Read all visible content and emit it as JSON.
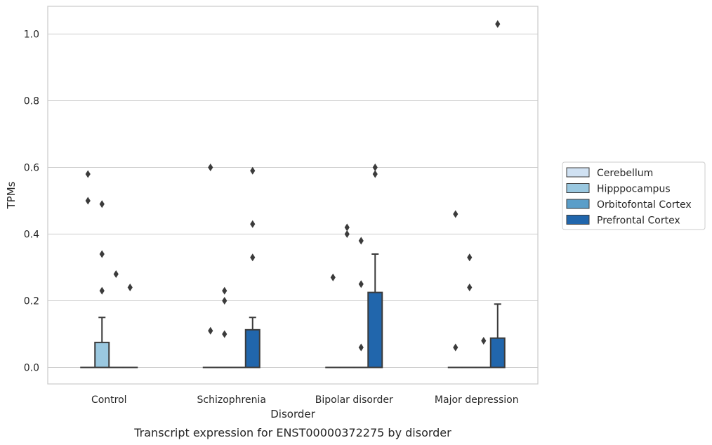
{
  "chart_data": {
    "type": "box",
    "caption": "Transcript expression for ENST00000372275 by disorder",
    "xlabel": "Disorder",
    "ylabel": "TPMs",
    "ylim": [
      -0.05,
      1.08
    ],
    "yticks": [
      "0.0",
      "0.2",
      "0.4",
      "0.6",
      "0.8",
      "1.0"
    ],
    "grid": "horizontal",
    "legend_position": "right",
    "categories": [
      "Control",
      "Schizophrenia",
      "Bipolar disorder",
      "Major depression"
    ],
    "series": [
      {
        "name": "Cerebellum",
        "color": "#d0e1f2",
        "boxes": [
          {
            "q1": 0,
            "median": 0,
            "q3": 0,
            "whisker_low": 0,
            "whisker_high": 0,
            "outliers": [
              0.58,
              0.5
            ]
          },
          {
            "q1": 0,
            "median": 0,
            "q3": 0,
            "whisker_low": 0,
            "whisker_high": 0,
            "outliers": [
              0.6,
              0.11
            ]
          },
          {
            "q1": 0,
            "median": 0,
            "q3": 0,
            "whisker_low": 0,
            "whisker_high": 0,
            "outliers": [
              0.27
            ]
          },
          {
            "q1": 0,
            "median": 0,
            "q3": 0,
            "whisker_low": 0,
            "whisker_high": 0,
            "outliers": [
              0.46,
              0.06
            ]
          }
        ]
      },
      {
        "name": "Hipppocampus",
        "color": "#9ac8e0",
        "boxes": [
          {
            "q1": 0,
            "median": 0,
            "q3": 0.075,
            "whisker_low": 0,
            "whisker_high": 0.15,
            "outliers": [
              0.49,
              0.34,
              0.23
            ]
          },
          {
            "q1": 0,
            "median": 0,
            "q3": 0,
            "whisker_low": 0,
            "whisker_high": 0,
            "outliers": [
              0.23,
              0.2,
              0.1
            ]
          },
          {
            "q1": 0,
            "median": 0,
            "q3": 0,
            "whisker_low": 0,
            "whisker_high": 0,
            "outliers": [
              0.42,
              0.4
            ]
          },
          {
            "q1": 0,
            "median": 0,
            "q3": 0,
            "whisker_low": 0,
            "whisker_high": 0,
            "outliers": [
              0.33,
              0.24
            ]
          }
        ]
      },
      {
        "name": "Orbitofontal Cortex",
        "color": "#5a9ec9",
        "boxes": [
          {
            "q1": 0,
            "median": 0,
            "q3": 0,
            "whisker_low": 0,
            "whisker_high": 0,
            "outliers": [
              0.28
            ]
          },
          {
            "q1": 0,
            "median": 0,
            "q3": 0,
            "whisker_low": 0,
            "whisker_high": 0,
            "outliers": []
          },
          {
            "q1": 0,
            "median": 0,
            "q3": 0,
            "whisker_low": 0,
            "whisker_high": 0,
            "outliers": [
              0.38,
              0.25,
              0.06
            ]
          },
          {
            "q1": 0,
            "median": 0,
            "q3": 0,
            "whisker_low": 0,
            "whisker_high": 0,
            "outliers": [
              0.08
            ]
          }
        ]
      },
      {
        "name": "Prefrontal Cortex",
        "color": "#2166ac",
        "boxes": [
          {
            "q1": 0,
            "median": 0,
            "q3": 0,
            "whisker_low": 0,
            "whisker_high": 0,
            "outliers": [
              0.24
            ]
          },
          {
            "q1": 0,
            "median": 0,
            "q3": 0.113,
            "whisker_low": 0,
            "whisker_high": 0.15,
            "outliers": [
              0.59,
              0.43,
              0.33
            ]
          },
          {
            "q1": 0,
            "median": 0,
            "q3": 0.225,
            "whisker_low": 0,
            "whisker_high": 0.34,
            "outliers": [
              0.6,
              0.58
            ]
          },
          {
            "q1": 0,
            "median": 0,
            "q3": 0.088,
            "whisker_low": 0,
            "whisker_high": 0.19,
            "outliers": [
              1.03
            ]
          }
        ]
      }
    ]
  }
}
